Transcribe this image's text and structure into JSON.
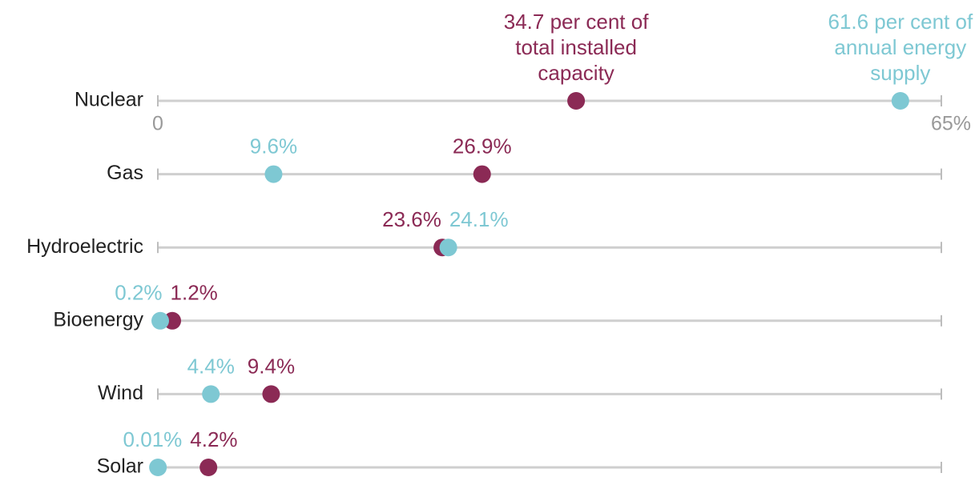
{
  "chart_data": {
    "type": "dot",
    "categories": [
      "Nuclear",
      "Gas",
      "Hydroelectric",
      "Bioenergy",
      "Wind",
      "Solar"
    ],
    "series": [
      {
        "color": "#8b2a55",
        "values": [
          34.7,
          26.9,
          23.6,
          1.2,
          9.4,
          4.2
        ],
        "value_labels": [
          "34.7 per cent of total installed capacity",
          "26.9%",
          "23.6%",
          "1.2%",
          "9.4%",
          "4.2%"
        ]
      },
      {
        "color": "#7ec8d3",
        "values": [
          61.6,
          9.6,
          24.1,
          0.2,
          4.4,
          0.01
        ],
        "value_labels": [
          "61.6 per cent of annual energy supply",
          "9.6%",
          "24.1%",
          "0.2%",
          "4.4%",
          "0.01%"
        ]
      }
    ],
    "xlim": [
      0,
      65
    ],
    "xticks": [
      0,
      {
        "value": 65,
        "label": "65%"
      }
    ]
  }
}
